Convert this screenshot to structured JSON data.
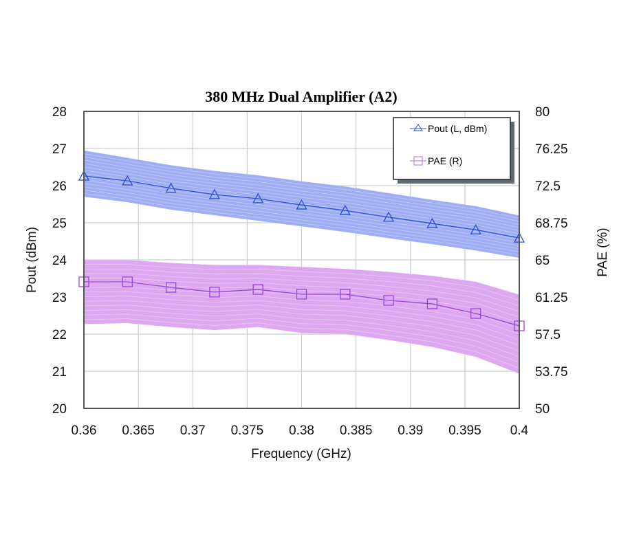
{
  "chart_data": {
    "type": "line",
    "title": "380 MHz Dual Amplifier (A2)",
    "xlabel": "Frequency (GHz)",
    "ylabel": "Pout (dBm)",
    "y2label": "PAE (%)",
    "xlim": [
      0.36,
      0.4
    ],
    "ylim": [
      20,
      28
    ],
    "y2lim": [
      50,
      80
    ],
    "grid": true,
    "legend_position": "top-right",
    "x_ticks": [
      "0.36",
      "0.365",
      "0.37",
      "0.375",
      "0.38",
      "0.385",
      "0.39",
      "0.395",
      "0.4"
    ],
    "y_ticks": [
      "20",
      "21",
      "22",
      "23",
      "24",
      "25",
      "26",
      "27",
      "28"
    ],
    "y2_ticks": [
      "50",
      "53.75",
      "57.5",
      "61.25",
      "65",
      "68.75",
      "72.5",
      "76.25",
      "80"
    ],
    "x": [
      0.36,
      0.364,
      0.368,
      0.372,
      0.376,
      0.38,
      0.384,
      0.388,
      0.392,
      0.396,
      0.4
    ],
    "series": [
      {
        "name": "Pout (L, dBm)",
        "axis": "left",
        "marker": "triangle",
        "color": "#2b4fd6",
        "band_color": "#9aaaf2",
        "values": [
          26.26,
          26.13,
          25.93,
          25.76,
          25.65,
          25.48,
          25.33,
          25.15,
          24.98,
          24.81,
          24.59
        ],
        "band_upper": [
          26.95,
          26.75,
          26.55,
          26.4,
          26.28,
          26.12,
          25.98,
          25.8,
          25.62,
          25.45,
          25.2
        ],
        "band_lower": [
          25.7,
          25.55,
          25.35,
          25.2,
          25.05,
          24.9,
          24.75,
          24.58,
          24.42,
          24.25,
          24.05
        ]
      },
      {
        "name": "PAE (R)",
        "axis": "right",
        "marker": "square",
        "color": "#9a45d8",
        "band_color": "#dca3f0",
        "values": [
          62.78,
          62.78,
          62.22,
          61.74,
          62.01,
          61.53,
          61.53,
          60.9,
          60.56,
          59.58,
          58.33
        ],
        "band_upper": [
          65.0,
          65.0,
          64.7,
          64.5,
          64.5,
          64.3,
          64.1,
          63.8,
          63.4,
          62.8,
          61.5
        ],
        "band_lower": [
          58.5,
          58.6,
          58.2,
          57.9,
          58.2,
          57.6,
          57.5,
          56.9,
          56.2,
          55.2,
          53.5
        ]
      }
    ]
  }
}
